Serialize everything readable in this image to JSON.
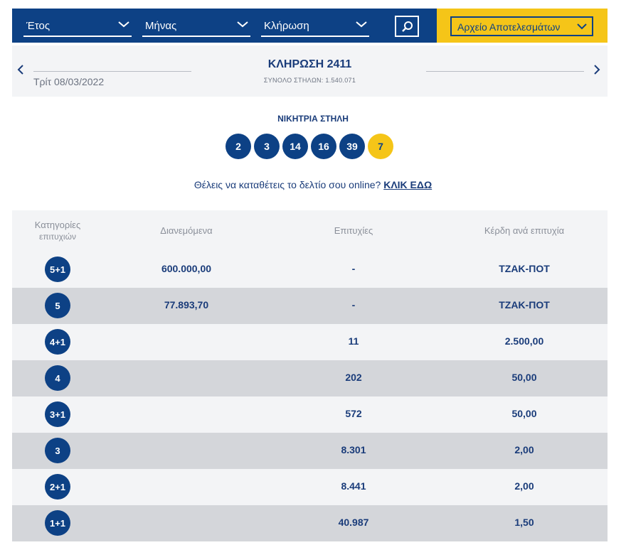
{
  "filters": {
    "year_label": "Έτος",
    "month_label": "Μήνας",
    "draw_label": "Κλήρωση",
    "archive_label": "Αρχείο Αποτελεσμάτων"
  },
  "draw": {
    "title": "ΚΛΗΡΩΣΗ 2411",
    "total_columns": "ΣΥΝΟΛΟ ΣΤΗΛΩΝ: 1.540.071",
    "date": "Τρίτ 08/03/2022"
  },
  "winning": {
    "label": "ΝΙΚΗΤΡΙΑ ΣΤΗΛΗ",
    "numbers": [
      "2",
      "3",
      "14",
      "16",
      "39"
    ],
    "joker": "7"
  },
  "promo": {
    "text": "Θέλεις να καταθέτεις το δελτίο σου online?",
    "link": "ΚΛΙΚ ΕΔΩ"
  },
  "table": {
    "headers": {
      "category_line1": "Κατηγορίες",
      "category_line2": "επιτυχιών",
      "distributed": "Διανεμόμενα",
      "winners": "Επιτυχίες",
      "prize": "Κέρδη ανά επιτυχία"
    },
    "rows": [
      {
        "category": "5+1",
        "distributed": "600.000,00",
        "winners": "-",
        "prize": "ΤΖΑΚ-ΠΟΤ"
      },
      {
        "category": "5",
        "distributed": "77.893,70",
        "winners": "-",
        "prize": "ΤΖΑΚ-ΠΟΤ"
      },
      {
        "category": "4+1",
        "distributed": "",
        "winners": "11",
        "prize": "2.500,00"
      },
      {
        "category": "4",
        "distributed": "",
        "winners": "202",
        "prize": "50,00"
      },
      {
        "category": "3+1",
        "distributed": "",
        "winners": "572",
        "prize": "50,00"
      },
      {
        "category": "3",
        "distributed": "",
        "winners": "8.301",
        "prize": "2,00"
      },
      {
        "category": "2+1",
        "distributed": "",
        "winners": "8.441",
        "prize": "2,00"
      },
      {
        "category": "1+1",
        "distributed": "",
        "winners": "40.987",
        "prize": "1,50"
      }
    ]
  },
  "colors": {
    "brand_blue": "#0d4185",
    "brand_yellow": "#f5c518",
    "text_blue": "#1a3c7a",
    "row_light": "#f3f4f6",
    "row_dark": "#d4d6da"
  }
}
